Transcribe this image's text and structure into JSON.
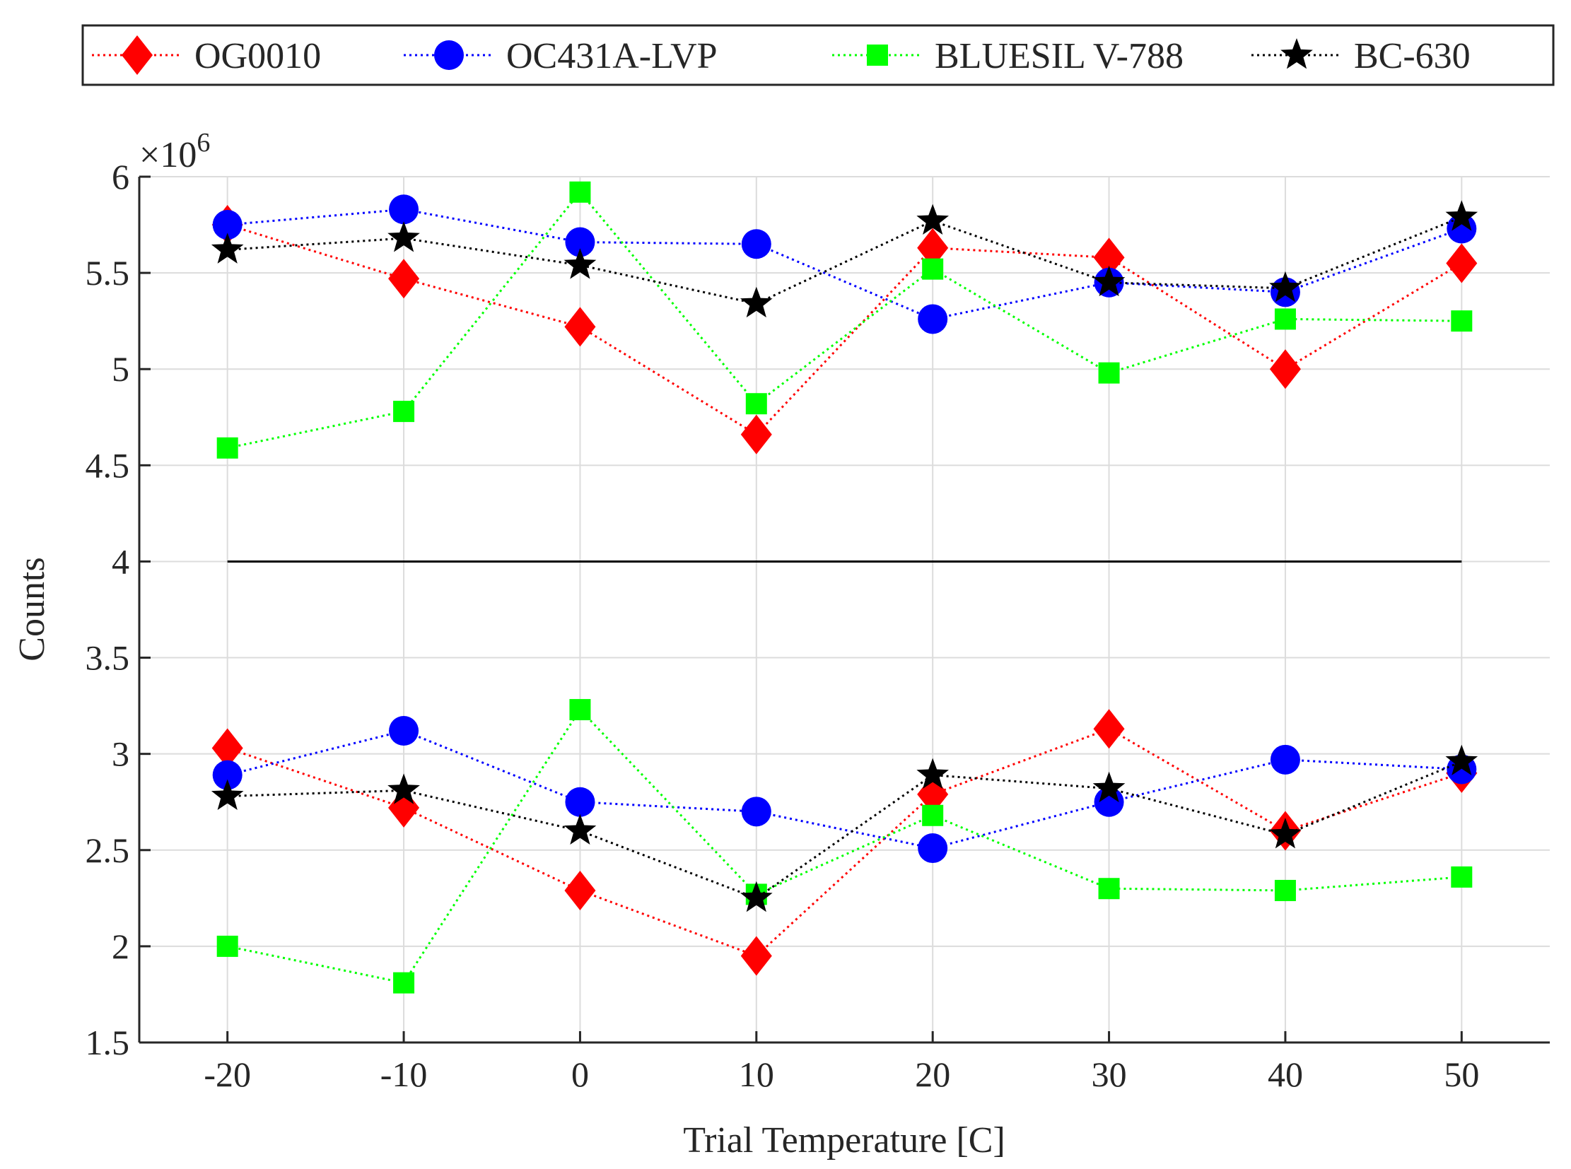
{
  "chart_data": {
    "type": "line",
    "title": "",
    "xlabel": "Trial Temperature [C]",
    "ylabel": "Counts",
    "y_multiplier_label": "×10",
    "y_multiplier_exponent": "6",
    "xlim": [
      -25,
      55
    ],
    "ylim": [
      1.5,
      6
    ],
    "x_ticks": [
      -20,
      -10,
      0,
      10,
      20,
      30,
      40,
      50
    ],
    "x_tick_labels": [
      "-20",
      "-10",
      "0",
      "10",
      "20",
      "30",
      "40",
      "50"
    ],
    "y_ticks": [
      1.5,
      2,
      2.5,
      3,
      3.5,
      4,
      4.5,
      5,
      5.5,
      6
    ],
    "y_tick_labels": [
      "1.5",
      "2",
      "2.5",
      "3",
      "3.5",
      "4",
      "4.5",
      "5",
      "5.5",
      "6"
    ],
    "grid": true,
    "legend_position": "top, outside plot, horizontal",
    "x": [
      -20,
      -10,
      0,
      10,
      20,
      30,
      40,
      50
    ],
    "reference_line": {
      "y": 4,
      "x_range": [
        -20,
        50
      ],
      "color": "#000000"
    },
    "series": [
      {
        "name": "OG0010",
        "color": "#ff0000",
        "marker": "diamond",
        "line": "dotted",
        "upper": [
          5.75,
          5.47,
          5.22,
          4.66,
          5.63,
          5.58,
          5.0,
          5.55
        ],
        "lower": [
          3.03,
          2.72,
          2.29,
          1.95,
          2.79,
          3.13,
          2.6,
          2.9
        ]
      },
      {
        "name": "OC431A-LVP",
        "color": "#0000ff",
        "marker": "circle",
        "line": "dotted",
        "upper": [
          5.75,
          5.83,
          5.66,
          5.65,
          5.26,
          5.45,
          5.4,
          5.73
        ],
        "lower": [
          2.89,
          3.12,
          2.75,
          2.7,
          2.51,
          2.75,
          2.97,
          2.92
        ]
      },
      {
        "name": "BLUESIL V-788",
        "color": "#00ff00",
        "marker": "square",
        "line": "dotted",
        "upper": [
          4.59,
          4.78,
          5.92,
          4.82,
          5.52,
          4.98,
          5.26,
          5.25
        ],
        "lower": [
          2.0,
          1.81,
          3.23,
          2.27,
          2.68,
          2.3,
          2.29,
          2.36
        ]
      },
      {
        "name": "BC-630",
        "color": "#000000",
        "marker": "star",
        "line": "dotted",
        "upper": [
          5.62,
          5.68,
          5.54,
          5.34,
          5.77,
          5.45,
          5.42,
          5.79
        ],
        "lower": [
          2.78,
          2.81,
          2.6,
          2.25,
          2.89,
          2.82,
          2.58,
          2.96
        ]
      }
    ]
  }
}
